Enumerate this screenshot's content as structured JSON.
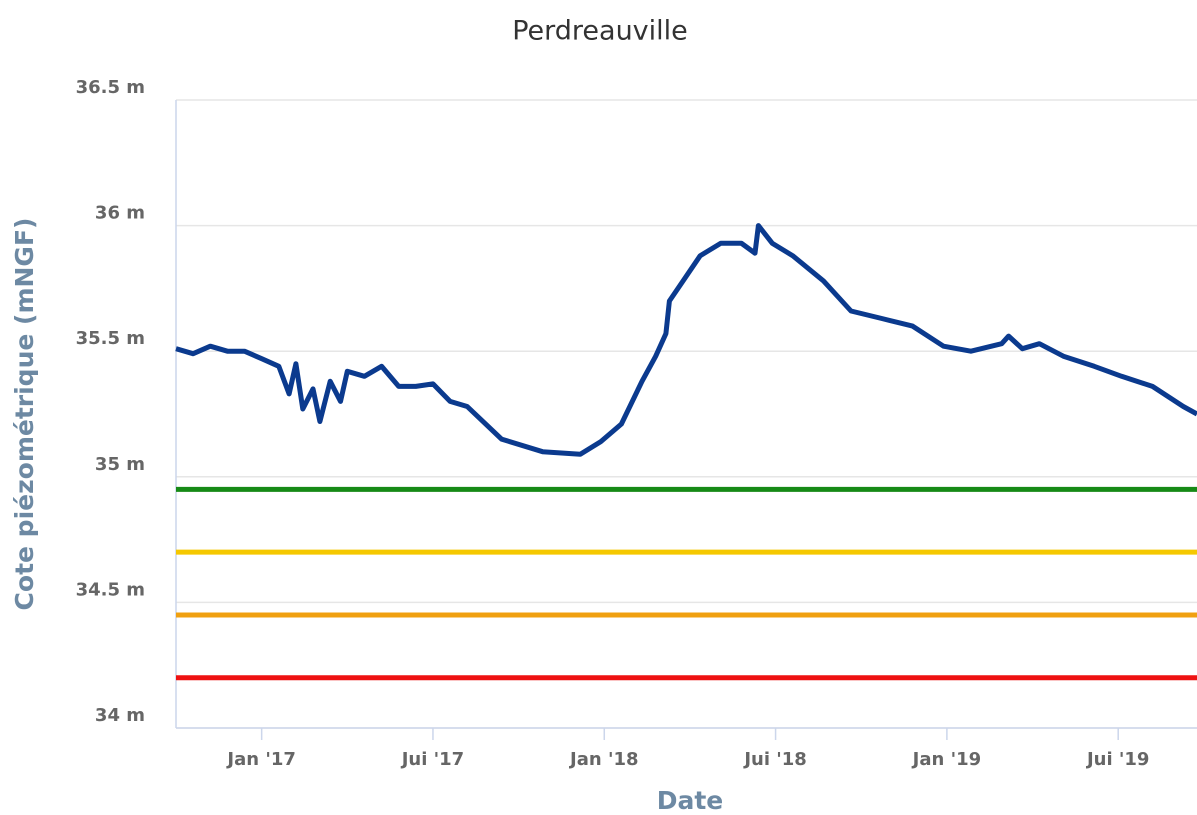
{
  "chart_data": {
    "type": "line",
    "title": "Perdreauville",
    "x_label": "Date",
    "y_label": "Cote piézométrique (mNGF)",
    "xlim": [
      2016.75,
      2019.73
    ],
    "xticks": [
      {
        "value": 2017.0,
        "label": "Jan '17"
      },
      {
        "value": 2017.5,
        "label": "Jui '17"
      },
      {
        "value": 2018.0,
        "label": "Jan '18"
      },
      {
        "value": 2018.5,
        "label": "Jui '18"
      },
      {
        "value": 2019.0,
        "label": "Jan '19"
      },
      {
        "value": 2019.5,
        "label": "Jui '19"
      }
    ],
    "ylim": [
      34,
      36.5
    ],
    "yticks": [
      {
        "value": 34,
        "label": "34 m"
      },
      {
        "value": 34.5,
        "label": "34.5 m"
      },
      {
        "value": 35,
        "label": "35 m"
      },
      {
        "value": 35.5,
        "label": "35.5 m"
      },
      {
        "value": 36,
        "label": "36 m"
      },
      {
        "value": 36.5,
        "label": "36.5 m"
      }
    ],
    "grid": true,
    "series": [
      {
        "color": "#0b3a8e",
        "x": [
          2016.75,
          2016.8,
          2016.85,
          2016.9,
          2016.95,
          2017.0,
          2017.05,
          2017.08,
          2017.1,
          2017.12,
          2017.15,
          2017.17,
          2017.2,
          2017.23,
          2017.25,
          2017.3,
          2017.35,
          2017.4,
          2017.45,
          2017.5,
          2017.55,
          2017.6,
          2017.7,
          2017.82,
          2017.93,
          2017.99,
          2018.05,
          2018.11,
          2018.15,
          2018.18,
          2018.19,
          2018.23,
          2018.28,
          2018.34,
          2018.4,
          2018.44,
          2018.45,
          2018.49,
          2018.55,
          2018.64,
          2018.72,
          2018.81,
          2018.9,
          2018.99,
          2019.07,
          2019.16,
          2019.18,
          2019.22,
          2019.27,
          2019.34,
          2019.43,
          2019.51,
          2019.6,
          2019.69,
          2019.73
        ],
        "values": [
          35.51,
          35.49,
          35.52,
          35.5,
          35.5,
          35.47,
          35.44,
          35.33,
          35.45,
          35.27,
          35.35,
          35.22,
          35.38,
          35.3,
          35.42,
          35.4,
          35.44,
          35.36,
          35.36,
          35.37,
          35.3,
          35.28,
          35.15,
          35.1,
          35.09,
          35.14,
          35.21,
          35.38,
          35.48,
          35.57,
          35.7,
          35.78,
          35.88,
          35.93,
          35.93,
          35.89,
          36.0,
          35.93,
          35.88,
          35.78,
          35.66,
          35.63,
          35.6,
          35.52,
          35.5,
          35.53,
          35.56,
          35.51,
          35.53,
          35.48,
          35.44,
          35.4,
          35.36,
          35.28,
          35.25
        ]
      }
    ],
    "reference_lines": [
      {
        "value": 34.95,
        "color": "#168a16"
      },
      {
        "value": 34.7,
        "color": "#f5c800"
      },
      {
        "value": 34.45,
        "color": "#f0a010"
      },
      {
        "value": 34.2,
        "color": "#ee1111"
      }
    ]
  }
}
